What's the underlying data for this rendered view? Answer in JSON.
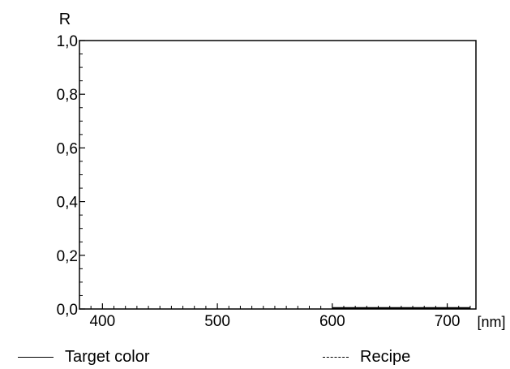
{
  "chart_data": {
    "type": "line",
    "ylabel": "R",
    "xlabel": "[nm]",
    "xlim": [
      380,
      725
    ],
    "ylim": [
      0,
      1
    ],
    "x_ticks": [
      400,
      500,
      600,
      700
    ],
    "x_tick_labels": [
      "400",
      "500",
      "600",
      "700"
    ],
    "y_ticks": [
      0,
      0.2,
      0.4,
      0.6,
      0.8,
      1.0
    ],
    "y_tick_labels": [
      "0,0",
      "0,2",
      "0,4",
      "0,6",
      "0,8",
      "1,0"
    ],
    "grid": false,
    "legend_position": "bottom",
    "series": [
      {
        "name": "Target color",
        "style": "solid",
        "color": "#000000",
        "x": [
          600,
          625,
          650,
          675,
          700,
          720
        ],
        "y": [
          0,
          0,
          0,
          0,
          0,
          0
        ]
      },
      {
        "name": "Recipe",
        "style": "dashed",
        "color": "#000000",
        "x": [],
        "y": []
      }
    ]
  }
}
